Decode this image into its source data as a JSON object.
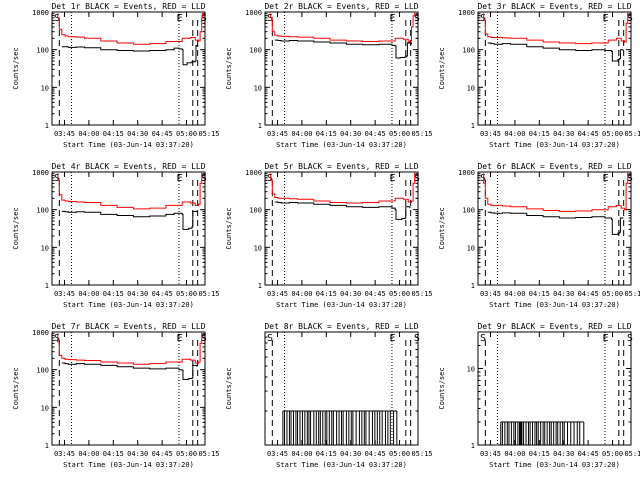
{
  "chart_data": [
    {
      "type": "line",
      "title": "Det 1r BLACK = Events, RED = LLD",
      "ylabel": "Counts/sec",
      "xlabel": "Start Time (03-Jun-14 03:37:20)",
      "ylim": [
        1,
        1000
      ],
      "yscale": "log",
      "yticks": [
        "1",
        "10",
        "100",
        "1000"
      ],
      "xticks": [
        "03:45",
        "04:00",
        "04:15",
        "04:30",
        "04:45",
        "05:00",
        "05:15"
      ],
      "markers": [
        "S",
        "E",
        "S"
      ],
      "series": [
        {
          "color": "#000000",
          "t": [
            3.2,
            4,
            6,
            10,
            15,
            20,
            30,
            40,
            50,
            60,
            70,
            75,
            78,
            80,
            80.5,
            83,
            86,
            88,
            88.5,
            89,
            89.5,
            90,
            91
          ],
          "y": [
            null,
            null,
            120,
            115,
            118,
            112,
            100,
            95,
            92,
            95,
            100,
            110,
            105,
            100,
            40,
            45,
            48,
            50,
            130,
            125,
            120,
            null,
            null
          ]
        },
        {
          "color": "#ff0000",
          "t": [
            3.2,
            3.5,
            4.5,
            6,
            8,
            10,
            15,
            20,
            30,
            40,
            50,
            60,
            70,
            80,
            85,
            88,
            90,
            91,
            92,
            92.5
          ],
          "y": [
            900,
            700,
            350,
            250,
            230,
            220,
            215,
            200,
            170,
            150,
            140,
            145,
            165,
            200,
            210,
            180,
            170,
            300,
            700,
            950
          ]
        }
      ]
    },
    {
      "type": "line",
      "title": "Det 2r BLACK = Events, RED = LLD",
      "ylabel": "Counts/sec",
      "xlabel": "Start Time (03-Jun-14 03:37:20)",
      "ylim": [
        1,
        1000
      ],
      "yscale": "log",
      "yticks": [
        "1",
        "10",
        "100",
        "1000"
      ],
      "xticks": [
        "03:45",
        "04:00",
        "04:15",
        "04:30",
        "04:45",
        "05:00",
        "05:15"
      ],
      "markers": [
        "S",
        "E",
        "S"
      ],
      "series": [
        {
          "color": "#000000",
          "t": [
            3.2,
            6,
            8,
            10,
            15,
            20,
            30,
            40,
            50,
            60,
            70,
            78,
            80,
            80.5,
            83,
            86,
            87,
            87.5,
            90,
            91
          ],
          "y": [
            null,
            180,
            175,
            170,
            175,
            170,
            160,
            150,
            140,
            135,
            140,
            130,
            125,
            60,
            62,
            65,
            68,
            150,
            140,
            null
          ]
        },
        {
          "color": "#ff0000",
          "t": [
            3.2,
            3.5,
            4.5,
            6,
            8,
            10,
            15,
            20,
            30,
            40,
            50,
            60,
            70,
            80,
            85,
            88,
            89,
            90,
            91,
            92
          ],
          "y": [
            900,
            700,
            300,
            240,
            230,
            225,
            220,
            215,
            200,
            180,
            170,
            165,
            170,
            200,
            190,
            160,
            170,
            400,
            800,
            950
          ]
        }
      ]
    },
    {
      "type": "line",
      "title": "Det 3r BLACK = Events, RED = LLD",
      "ylabel": "Counts/sec",
      "xlabel": "Start Time (03-Jun-14 03:37:20)",
      "ylim": [
        1,
        1000
      ],
      "yscale": "log",
      "yticks": [
        "1",
        "10",
        "100",
        "1000"
      ],
      "xticks": [
        "03:45",
        "04:00",
        "04:15",
        "04:30",
        "04:45",
        "05:00",
        "05:15"
      ],
      "markers": [
        "S",
        "E",
        "S"
      ],
      "series": [
        {
          "color": "#000000",
          "t": [
            3.2,
            6,
            8,
            10,
            15,
            20,
            30,
            40,
            50,
            60,
            70,
            78,
            82,
            82.5,
            86,
            87,
            87.5,
            89,
            90
          ],
          "y": [
            null,
            150,
            145,
            140,
            145,
            140,
            120,
            110,
            100,
            95,
            100,
            95,
            90,
            50,
            55,
            58,
            100,
            95,
            null
          ]
        },
        {
          "color": "#ff0000",
          "t": [
            3.2,
            3.5,
            4.5,
            6,
            8,
            10,
            15,
            20,
            30,
            40,
            50,
            60,
            70,
            80,
            85,
            88,
            90,
            91,
            92
          ],
          "y": [
            900,
            600,
            260,
            220,
            210,
            210,
            205,
            200,
            180,
            160,
            150,
            145,
            150,
            180,
            200,
            170,
            160,
            500,
            950
          ]
        }
      ]
    },
    {
      "type": "line",
      "title": "Det 4r BLACK = Events, RED = LLD",
      "ylabel": "Counts/sec",
      "xlabel": "Start Time (03-Jun-14 03:37:20)",
      "ylim": [
        1,
        1000
      ],
      "yscale": "log",
      "yticks": [
        "1",
        "10",
        "100",
        "1000"
      ],
      "xticks": [
        "03:45",
        "04:00",
        "04:15",
        "04:30",
        "04:45",
        "05:00",
        "05:15"
      ],
      "markers": [
        "S",
        "E",
        "S"
      ],
      "series": [
        {
          "color": "#000000",
          "t": [
            3.2,
            6,
            8,
            10,
            15,
            20,
            30,
            40,
            50,
            60,
            70,
            75,
            80,
            80.5,
            84,
            86,
            86.5,
            89,
            90
          ],
          "y": [
            null,
            90,
            88,
            85,
            88,
            85,
            75,
            70,
            65,
            68,
            75,
            80,
            75,
            30,
            32,
            35,
            90,
            85,
            null
          ]
        },
        {
          "color": "#ff0000",
          "t": [
            3.2,
            3.5,
            4.5,
            6,
            8,
            10,
            15,
            20,
            30,
            40,
            50,
            60,
            70,
            80,
            85,
            88,
            90,
            91,
            92
          ],
          "y": [
            900,
            600,
            250,
            180,
            170,
            165,
            160,
            155,
            130,
            115,
            105,
            110,
            130,
            160,
            150,
            130,
            140,
            500,
            950
          ]
        }
      ]
    },
    {
      "type": "line",
      "title": "Det 5r BLACK = Events, RED = LLD",
      "ylabel": "Counts/sec",
      "xlabel": "Start Time (03-Jun-14 03:37:20)",
      "ylim": [
        1,
        1000
      ],
      "yscale": "log",
      "yticks": [
        "1",
        "10",
        "100",
        "1000"
      ],
      "xticks": [
        "03:45",
        "04:00",
        "04:15",
        "04:30",
        "04:45",
        "05:00",
        "05:15"
      ],
      "markers": [
        "S",
        "E",
        "S"
      ],
      "series": [
        {
          "color": "#000000",
          "t": [
            3.2,
            6,
            8,
            10,
            15,
            20,
            30,
            40,
            50,
            60,
            70,
            78,
            80,
            80.5,
            84,
            86,
            86.5,
            89,
            90
          ],
          "y": [
            null,
            160,
            155,
            150,
            155,
            150,
            140,
            130,
            120,
            115,
            120,
            110,
            100,
            55,
            58,
            60,
            120,
            110,
            null
          ]
        },
        {
          "color": "#ff0000",
          "t": [
            3.2,
            3.5,
            4.5,
            6,
            8,
            10,
            15,
            20,
            30,
            40,
            50,
            60,
            70,
            80,
            85,
            88,
            90,
            91,
            92
          ],
          "y": [
            900,
            600,
            260,
            210,
            200,
            200,
            195,
            190,
            170,
            155,
            150,
            155,
            170,
            200,
            190,
            160,
            170,
            500,
            950
          ]
        }
      ]
    },
    {
      "type": "line",
      "title": "Det 6r BLACK = Events, RED = LLD",
      "ylabel": "Counts/sec",
      "xlabel": "Start Time (03-Jun-14 03:37:20)",
      "ylim": [
        1,
        1000
      ],
      "yscale": "log",
      "yticks": [
        "1",
        "10",
        "100",
        "1000"
      ],
      "xticks": [
        "03:45",
        "04:00",
        "04:15",
        "04:30",
        "04:45",
        "05:00",
        "05:15"
      ],
      "markers": [
        "S",
        "E",
        "S"
      ],
      "series": [
        {
          "color": "#000000",
          "t": [
            3.2,
            6,
            8,
            10,
            15,
            20,
            30,
            40,
            50,
            60,
            70,
            78,
            82,
            82.5,
            86,
            87,
            87.5,
            89,
            90
          ],
          "y": [
            null,
            85,
            82,
            80,
            82,
            80,
            70,
            65,
            60,
            62,
            65,
            60,
            55,
            22,
            24,
            25,
            60,
            58,
            null
          ]
        },
        {
          "color": "#ff0000",
          "t": [
            3.2,
            3.5,
            4.5,
            6,
            8,
            10,
            15,
            20,
            30,
            40,
            50,
            60,
            70,
            80,
            85,
            88,
            90,
            91,
            92
          ],
          "y": [
            900,
            500,
            200,
            140,
            130,
            130,
            125,
            120,
            105,
            95,
            90,
            92,
            100,
            120,
            130,
            110,
            100,
            500,
            950
          ]
        }
      ]
    },
    {
      "type": "line",
      "title": "Det 7r BLACK = Events, RED = LLD",
      "ylabel": "Counts/sec",
      "xlabel": "Start Time (03-Jun-14 03:37:20)",
      "ylim": [
        1,
        1000
      ],
      "yscale": "log",
      "yticks": [
        "1",
        "10",
        "100",
        "1000"
      ],
      "xticks": [
        "03:45",
        "04:00",
        "04:15",
        "04:30",
        "04:45",
        "05:00",
        "05:15"
      ],
      "markers": [
        "S",
        "E",
        "S"
      ],
      "series": [
        {
          "color": "#000000",
          "t": [
            3.2,
            6,
            8,
            10,
            15,
            20,
            30,
            40,
            50,
            60,
            70,
            78,
            80,
            80.5,
            84,
            86,
            86.5,
            89,
            90
          ],
          "y": [
            null,
            150,
            145,
            140,
            145,
            140,
            130,
            120,
            110,
            105,
            110,
            100,
            95,
            55,
            58,
            60,
            130,
            120,
            null
          ]
        },
        {
          "color": "#ff0000",
          "t": [
            3.2,
            3.5,
            4.5,
            6,
            8,
            10,
            15,
            20,
            30,
            40,
            50,
            60,
            70,
            80,
            85,
            88,
            90,
            91,
            92
          ],
          "y": [
            900,
            550,
            240,
            200,
            190,
            185,
            180,
            175,
            160,
            150,
            140,
            145,
            160,
            190,
            180,
            150,
            160,
            500,
            950
          ]
        }
      ]
    },
    {
      "type": "line",
      "title": "Det 8r BLACK = Events, RED = LLD",
      "ylabel": "Counts/sec",
      "xlabel": "Start Time (03-Jun-14 03:37:20)",
      "ylim": [
        1,
        10
      ],
      "yscale": "log",
      "yticks": [],
      "xticks": [
        "03:45",
        "04:00",
        "04:15",
        "04:30",
        "04:45",
        "05:00",
        "05:15"
      ],
      "markers": [
        "S",
        "E",
        "S"
      ],
      "spikes": {
        "color": "#000000",
        "level": 2,
        "t": [
          11,
          12,
          13.5,
          15,
          16,
          17.5,
          19,
          20,
          21.5,
          23,
          24.5,
          26,
          27,
          28,
          30,
          31.5,
          33,
          34,
          35.5,
          37,
          38,
          39.5,
          41,
          42,
          44,
          45.5,
          47,
          48,
          50,
          51.5,
          53,
          54,
          56,
          58,
          59.5,
          61,
          62,
          64,
          66,
          67.5,
          69,
          70.5,
          72,
          74,
          75.5,
          77,
          79,
          81
        ]
      }
    },
    {
      "type": "line",
      "title": "Det 9r BLACK = Events, RED = LLD",
      "ylabel": "Counts/sec",
      "xlabel": "Start Time (03-Jun-14 03:37:20)",
      "ylim": [
        1,
        30
      ],
      "yscale": "log",
      "yticks": [
        "1",
        "10"
      ],
      "xticks": [
        "03:45",
        "04:00",
        "04:15",
        "04:30",
        "04:45",
        "05:00",
        "05:15"
      ],
      "markers": [
        "S",
        "E",
        "S"
      ],
      "spikes": {
        "color": "#000000",
        "level": 2,
        "t": [
          14,
          15,
          16.5,
          18,
          19,
          20.5,
          22,
          23,
          24.5,
          25.5,
          26,
          26.5,
          27,
          28,
          29.5,
          31,
          32,
          33.5,
          35,
          36,
          37,
          38.5,
          40,
          41,
          42.5,
          44,
          45,
          46.5,
          48,
          49,
          50.5,
          52,
          53,
          55,
          57,
          59,
          61,
          62.5,
          65
        ]
      }
    }
  ]
}
